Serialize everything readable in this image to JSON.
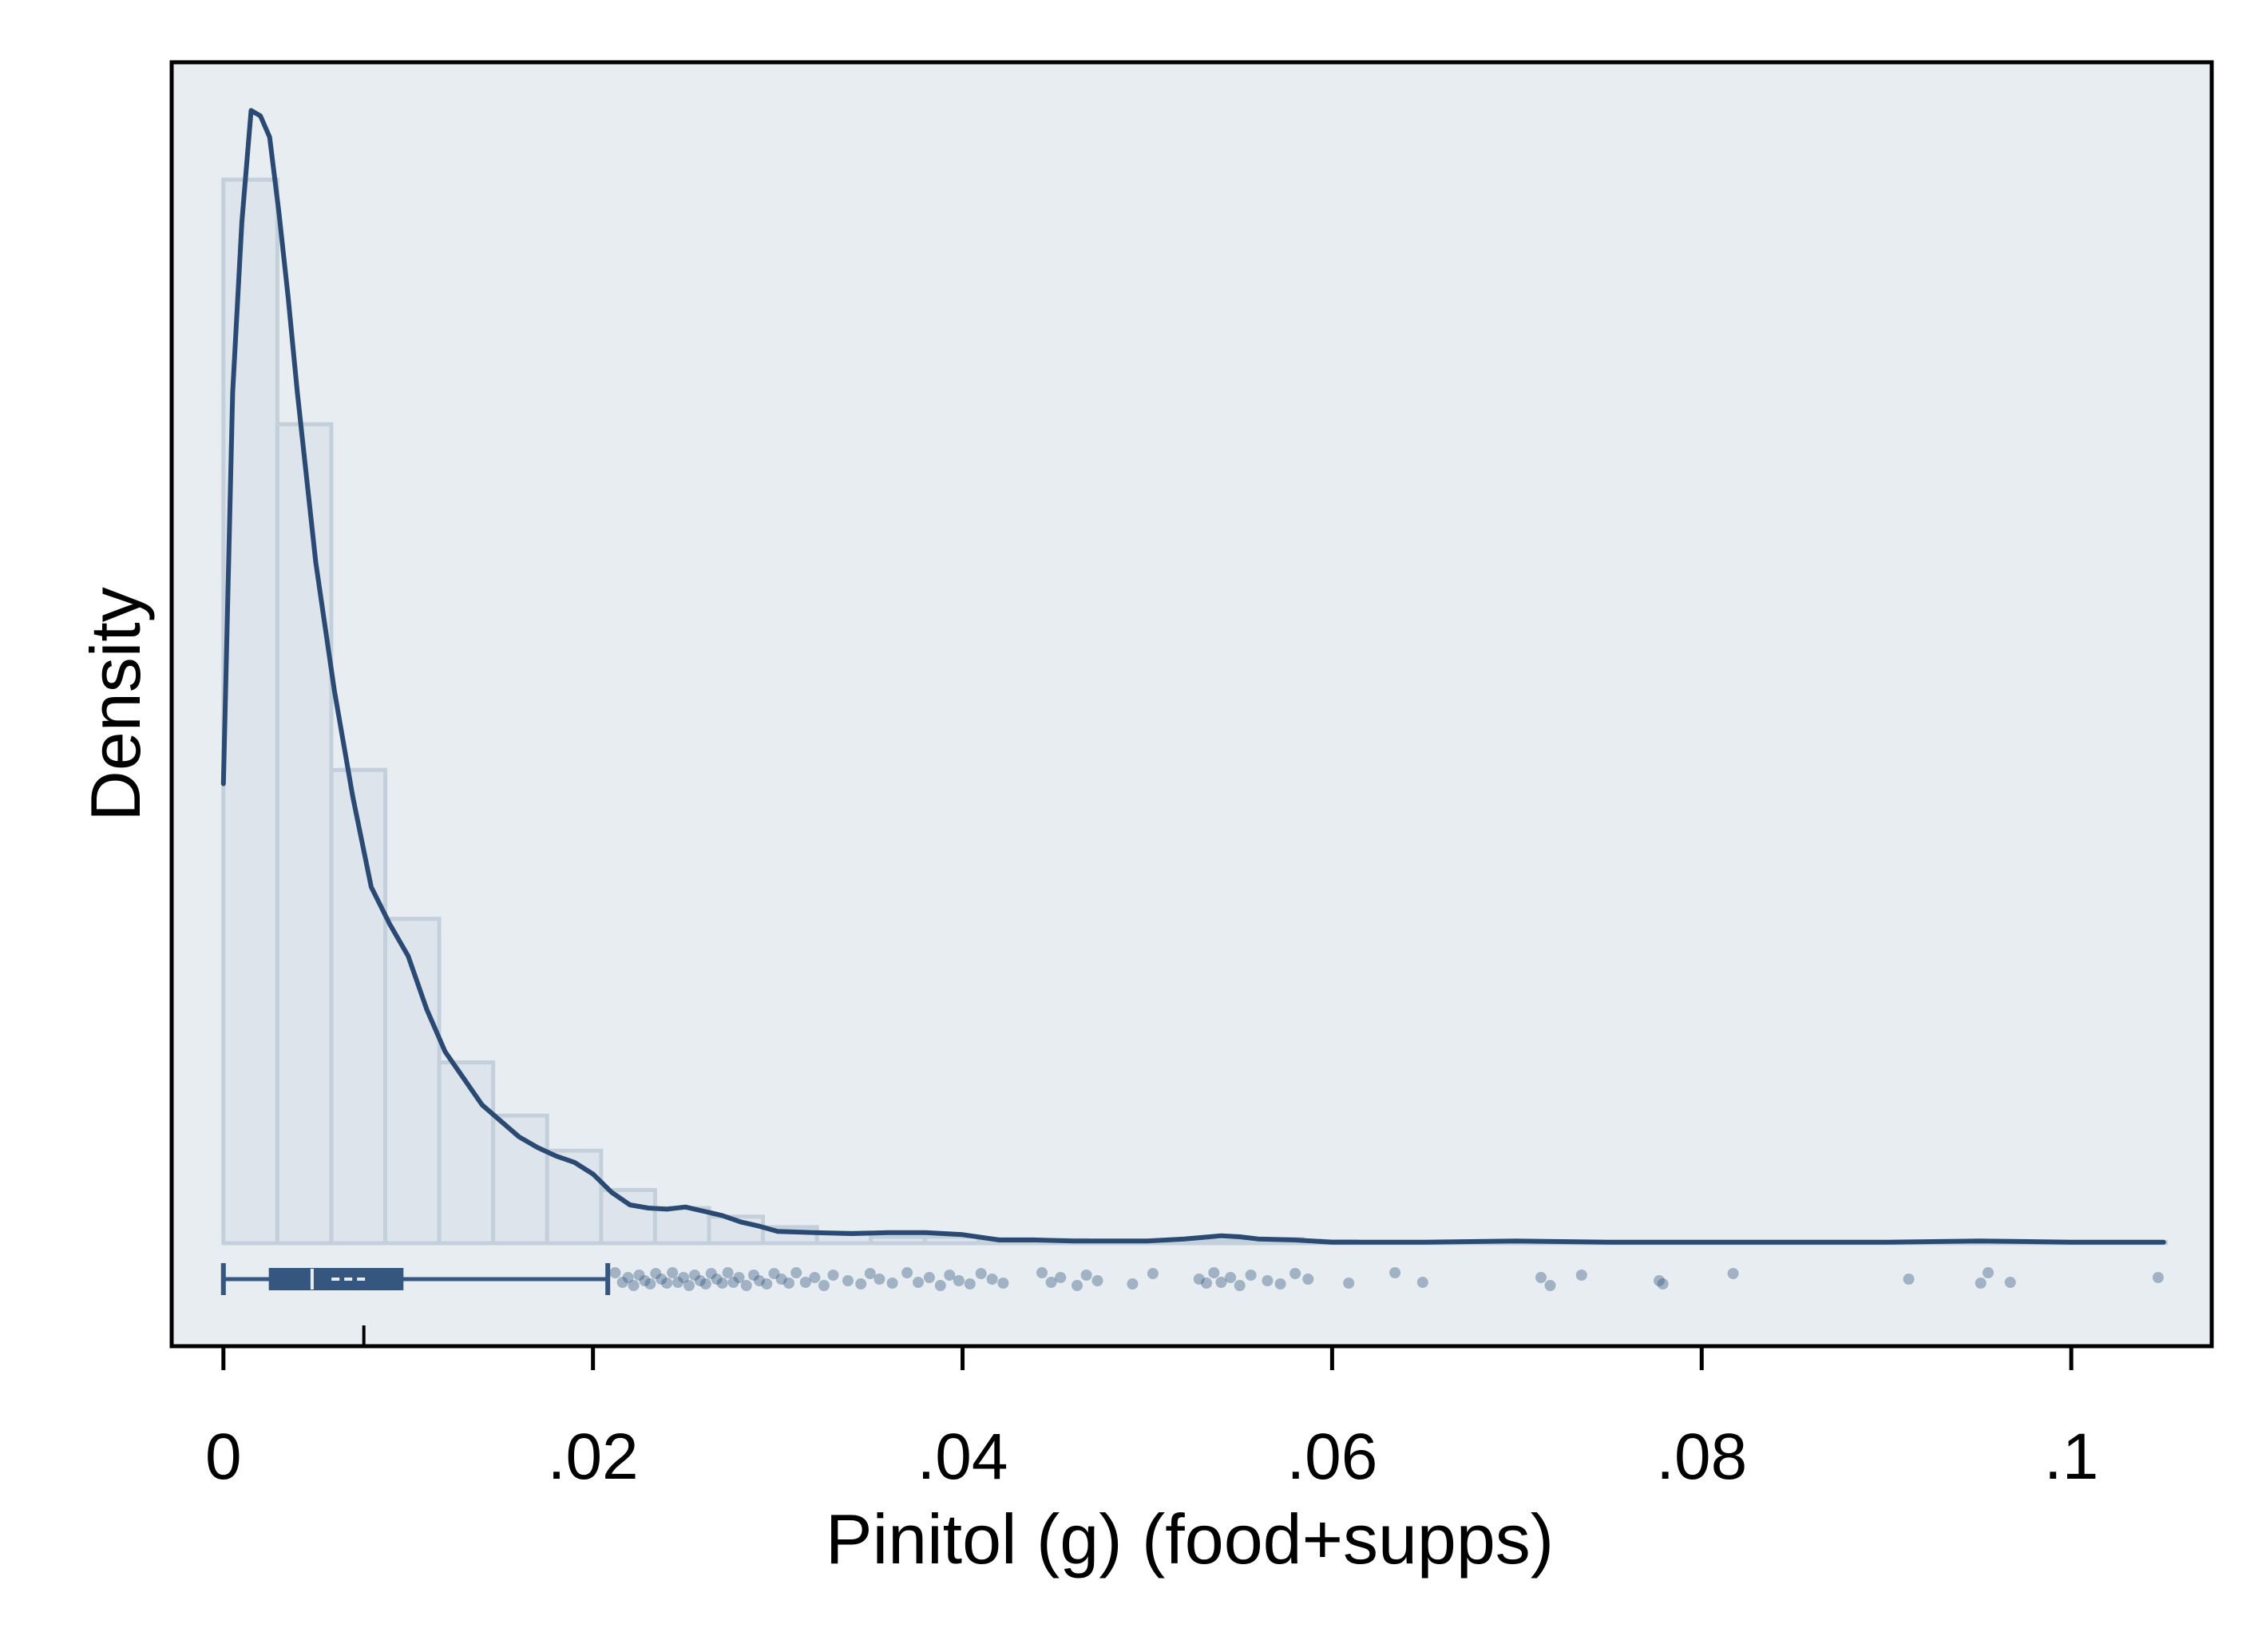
{
  "chart_data": {
    "type": "histogram",
    "title": "",
    "xlabel": "Pinitol (g) (food+supps)",
    "ylabel": "Density",
    "xlim": [
      -0.0028,
      0.1076
    ],
    "x_ticks": [
      0,
      0.02,
      0.04,
      0.06,
      0.08,
      0.1
    ],
    "x_tick_labels": [
      "0",
      ".02",
      ".04",
      ".06",
      ".08",
      ".1"
    ],
    "y_ticks_shown": false,
    "grid": false,
    "legend": "none",
    "colors": {
      "frame": "#000000",
      "plot_background": "#e8edf2",
      "bar_fill": "#dde4eb",
      "bar_edge": "#c3d0dc",
      "kde_line": "#2a4a73",
      "box": "#34567f",
      "points": "#38597f"
    },
    "histogram": {
      "bin_edges": [
        0,
        0.00292,
        0.00584,
        0.00876,
        0.01168,
        0.0146,
        0.01752,
        0.02044,
        0.02336,
        0.02628,
        0.0292,
        0.03212,
        0.03504,
        0.03796,
        0.04088,
        0.0438,
        0.04672,
        0.04964,
        0.05256,
        0.05548,
        0.0584,
        0.06132,
        0.06424,
        0.06716,
        0.07008,
        0.073,
        0.07592,
        0.07884,
        0.08176,
        0.08468,
        0.0876,
        0.09052,
        0.09344,
        0.09636,
        0.09928,
        0.1022,
        0.10512
      ],
      "relative_density": [
        1.0,
        0.77,
        0.445,
        0.305,
        0.17,
        0.12,
        0.087,
        0.05,
        0.033,
        0.025,
        0.015,
        0.01,
        0.006,
        0.006,
        0.004,
        0.003,
        0.002,
        0.002,
        0.002,
        0.004,
        0.002,
        0.001,
        0.001,
        0.001,
        0.001,
        0.001,
        0.001,
        0.001,
        0.001,
        0.001,
        0.001,
        0.001,
        0.001,
        0.001,
        0.001,
        0.001
      ]
    },
    "kde": {
      "x": [
        0,
        0.0005,
        0.001,
        0.0015,
        0.002,
        0.0025,
        0.003,
        0.0035,
        0.004,
        0.005,
        0.006,
        0.007,
        0.008,
        0.009,
        0.01,
        0.011,
        0.012,
        0.013,
        0.014,
        0.015,
        0.016,
        0.017,
        0.018,
        0.019,
        0.02,
        0.021,
        0.022,
        0.023,
        0.024,
        0.025,
        0.026,
        0.027,
        0.028,
        0.029,
        0.03,
        0.032,
        0.034,
        0.036,
        0.038,
        0.04,
        0.042,
        0.044,
        0.046,
        0.048,
        0.05,
        0.052,
        0.054,
        0.055,
        0.056,
        0.058,
        0.06,
        0.065,
        0.07,
        0.075,
        0.08,
        0.085,
        0.09,
        0.095,
        0.1,
        0.105
      ],
      "relative_density": [
        0.432,
        0.8,
        0.96,
        1.065,
        1.06,
        1.04,
        0.97,
        0.89,
        0.8,
        0.64,
        0.52,
        0.42,
        0.335,
        0.3,
        0.27,
        0.22,
        0.18,
        0.155,
        0.13,
        0.115,
        0.1,
        0.09,
        0.082,
        0.076,
        0.065,
        0.048,
        0.036,
        0.033,
        0.032,
        0.034,
        0.03,
        0.026,
        0.02,
        0.016,
        0.011,
        0.01,
        0.009,
        0.01,
        0.01,
        0.008,
        0.003,
        0.003,
        0.002,
        0.002,
        0.002,
        0.004,
        0.007,
        0.006,
        0.004,
        0.003,
        0.001,
        0.001,
        0.002,
        0.001,
        0.001,
        0.001,
        0.001,
        0.002,
        0.001,
        0.001
      ]
    },
    "boxplot": {
      "whisker_low": 0.0,
      "q1": 0.0025,
      "median": 0.0048,
      "mean": 0.0068,
      "q3": 0.0097,
      "whisker_high": 0.0208,
      "x_axis_marker": 0.0076
    },
    "outliers": [
      0.0212,
      0.0216,
      0.0219,
      0.0222,
      0.0225,
      0.0228,
      0.0231,
      0.0234,
      0.0237,
      0.024,
      0.0243,
      0.0246,
      0.0249,
      0.0252,
      0.0255,
      0.0258,
      0.0261,
      0.0264,
      0.0267,
      0.027,
      0.0273,
      0.0276,
      0.0279,
      0.0283,
      0.0287,
      0.029,
      0.0294,
      0.0298,
      0.0302,
      0.0306,
      0.031,
      0.0315,
      0.032,
      0.0325,
      0.033,
      0.0338,
      0.0345,
      0.035,
      0.0355,
      0.0362,
      0.037,
      0.0376,
      0.0382,
      0.0388,
      0.0393,
      0.0398,
      0.0404,
      0.041,
      0.0416,
      0.0422,
      0.0443,
      0.0448,
      0.0453,
      0.0462,
      0.0467,
      0.0473,
      0.0492,
      0.0503,
      0.0528,
      0.0532,
      0.0536,
      0.054,
      0.0545,
      0.055,
      0.0556,
      0.0565,
      0.0572,
      0.058,
      0.0587,
      0.0609,
      0.0634,
      0.0649,
      0.0713,
      0.0718,
      0.0735,
      0.0777,
      0.0779,
      0.0817,
      0.0912,
      0.0951,
      0.0955,
      0.0967,
      0.1047
    ]
  }
}
